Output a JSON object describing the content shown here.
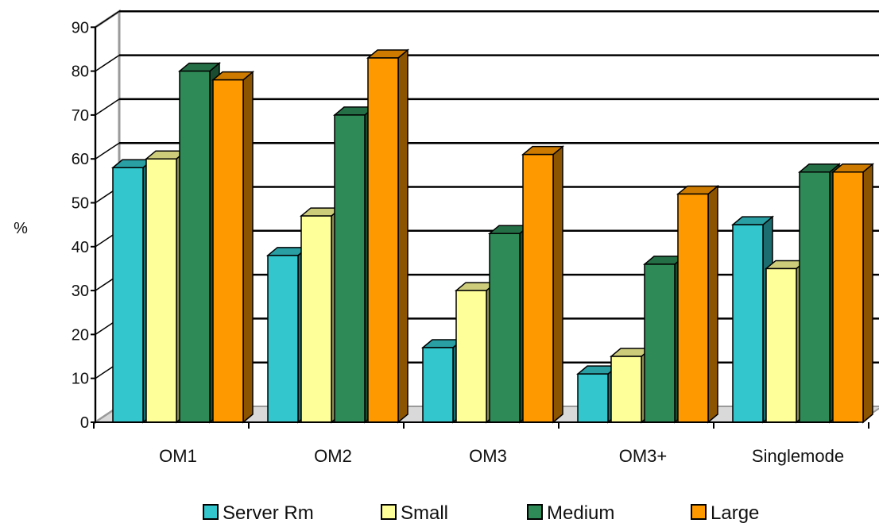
{
  "chart_data": {
    "type": "bar",
    "title": "",
    "xlabel": "",
    "ylabel": "%",
    "ylim": [
      0,
      90
    ],
    "yticks": [
      0,
      10,
      20,
      30,
      40,
      50,
      60,
      70,
      80,
      90
    ],
    "grid": true,
    "three_d": true,
    "legend_position": "bottom",
    "categories": [
      "OM1",
      "OM2",
      "OM3",
      "OM3+",
      "Singlemode"
    ],
    "series": [
      {
        "name": "Server Rm",
        "color": "#33c6cc",
        "values": [
          58,
          38,
          17,
          11,
          45
        ]
      },
      {
        "name": "Small",
        "color": "#ffff99",
        "values": [
          60,
          47,
          30,
          15,
          35
        ]
      },
      {
        "name": "Medium",
        "color": "#2e8b57",
        "values": [
          80,
          70,
          43,
          36,
          57
        ]
      },
      {
        "name": "Large",
        "color": "#ff9900",
        "values": [
          78,
          83,
          61,
          52,
          57
        ]
      }
    ]
  }
}
